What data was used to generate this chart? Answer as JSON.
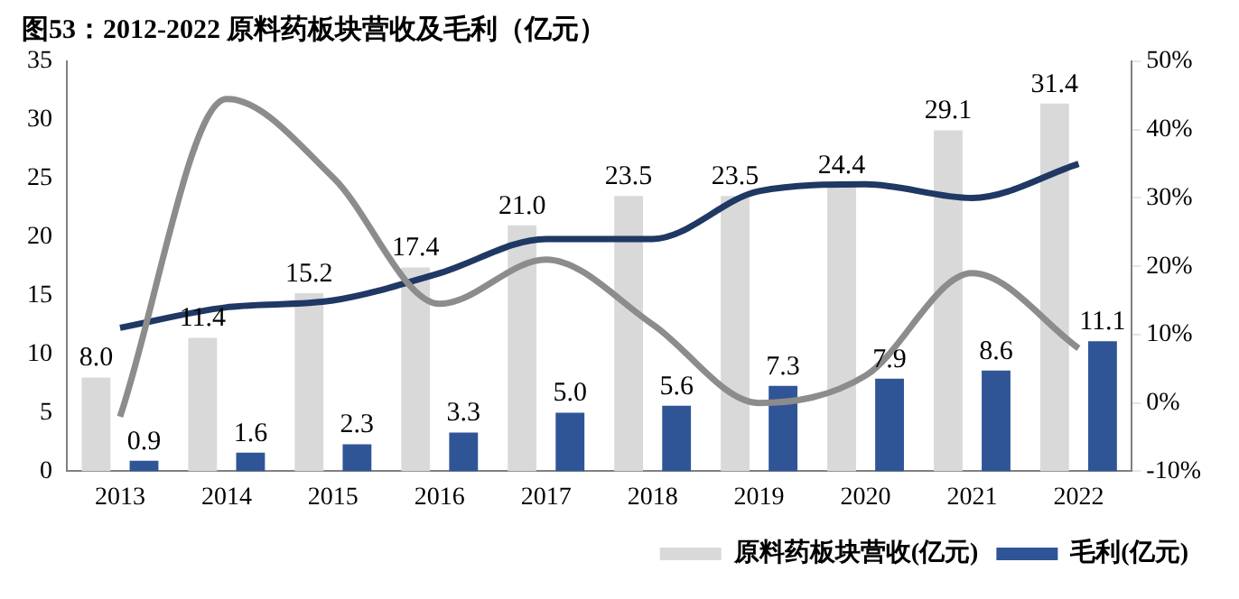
{
  "chart_data": {
    "type": "bar",
    "title": "图53：2012-2022 原料药板块营收及毛利（亿元）",
    "categories": [
      "2013",
      "2014",
      "2015",
      "2016",
      "2017",
      "2018",
      "2019",
      "2020",
      "2021",
      "2022"
    ],
    "series": [
      {
        "name": "原料药板块营收(亿元)",
        "color": "#d9d9d9",
        "values": [
          8.0,
          11.4,
          15.2,
          17.4,
          21.0,
          23.5,
          23.5,
          24.4,
          29.1,
          31.4
        ],
        "value_labels": [
          "8.0",
          "11.4",
          "15.2",
          "17.4",
          "21.0",
          "23.5",
          "23.5",
          "24.4",
          "29.1",
          "31.4"
        ]
      },
      {
        "name": "毛利(亿元)",
        "color": "#2f5597",
        "values": [
          0.9,
          1.6,
          2.3,
          3.3,
          5.0,
          5.6,
          7.3,
          7.9,
          8.6,
          11.1
        ],
        "value_labels": [
          "0.9",
          "1.6",
          "2.3",
          "3.3",
          "5.0",
          "5.6",
          "7.3",
          "7.9",
          "8.6",
          "11.1"
        ]
      },
      {
        "type": "line",
        "axis": "y2",
        "color": "#8c8c8c",
        "values": [
          -2,
          44.5,
          33,
          14.5,
          21,
          11.5,
          0,
          4,
          19,
          8
        ]
      },
      {
        "type": "line",
        "axis": "y2",
        "color": "#1f3864",
        "values": [
          11,
          14,
          15,
          19,
          24,
          24,
          31,
          32,
          30,
          35
        ]
      }
    ],
    "ylim": [
      0,
      35
    ],
    "yticks": [
      0,
      5,
      10,
      15,
      20,
      25,
      30,
      35
    ],
    "y2lim": [
      -10,
      50
    ],
    "y2ticks": [
      {
        "value": -10,
        "label": "-10%"
      },
      {
        "value": 0,
        "label": "0%"
      },
      {
        "value": 10,
        "label": "10%"
      },
      {
        "value": 20,
        "label": "20%"
      },
      {
        "value": 30,
        "label": "30%"
      },
      {
        "value": 40,
        "label": "40%"
      },
      {
        "value": 50,
        "label": "50%"
      }
    ],
    "grid": false,
    "legend": "bottom right",
    "marker": "none",
    "line_style": "solid"
  }
}
